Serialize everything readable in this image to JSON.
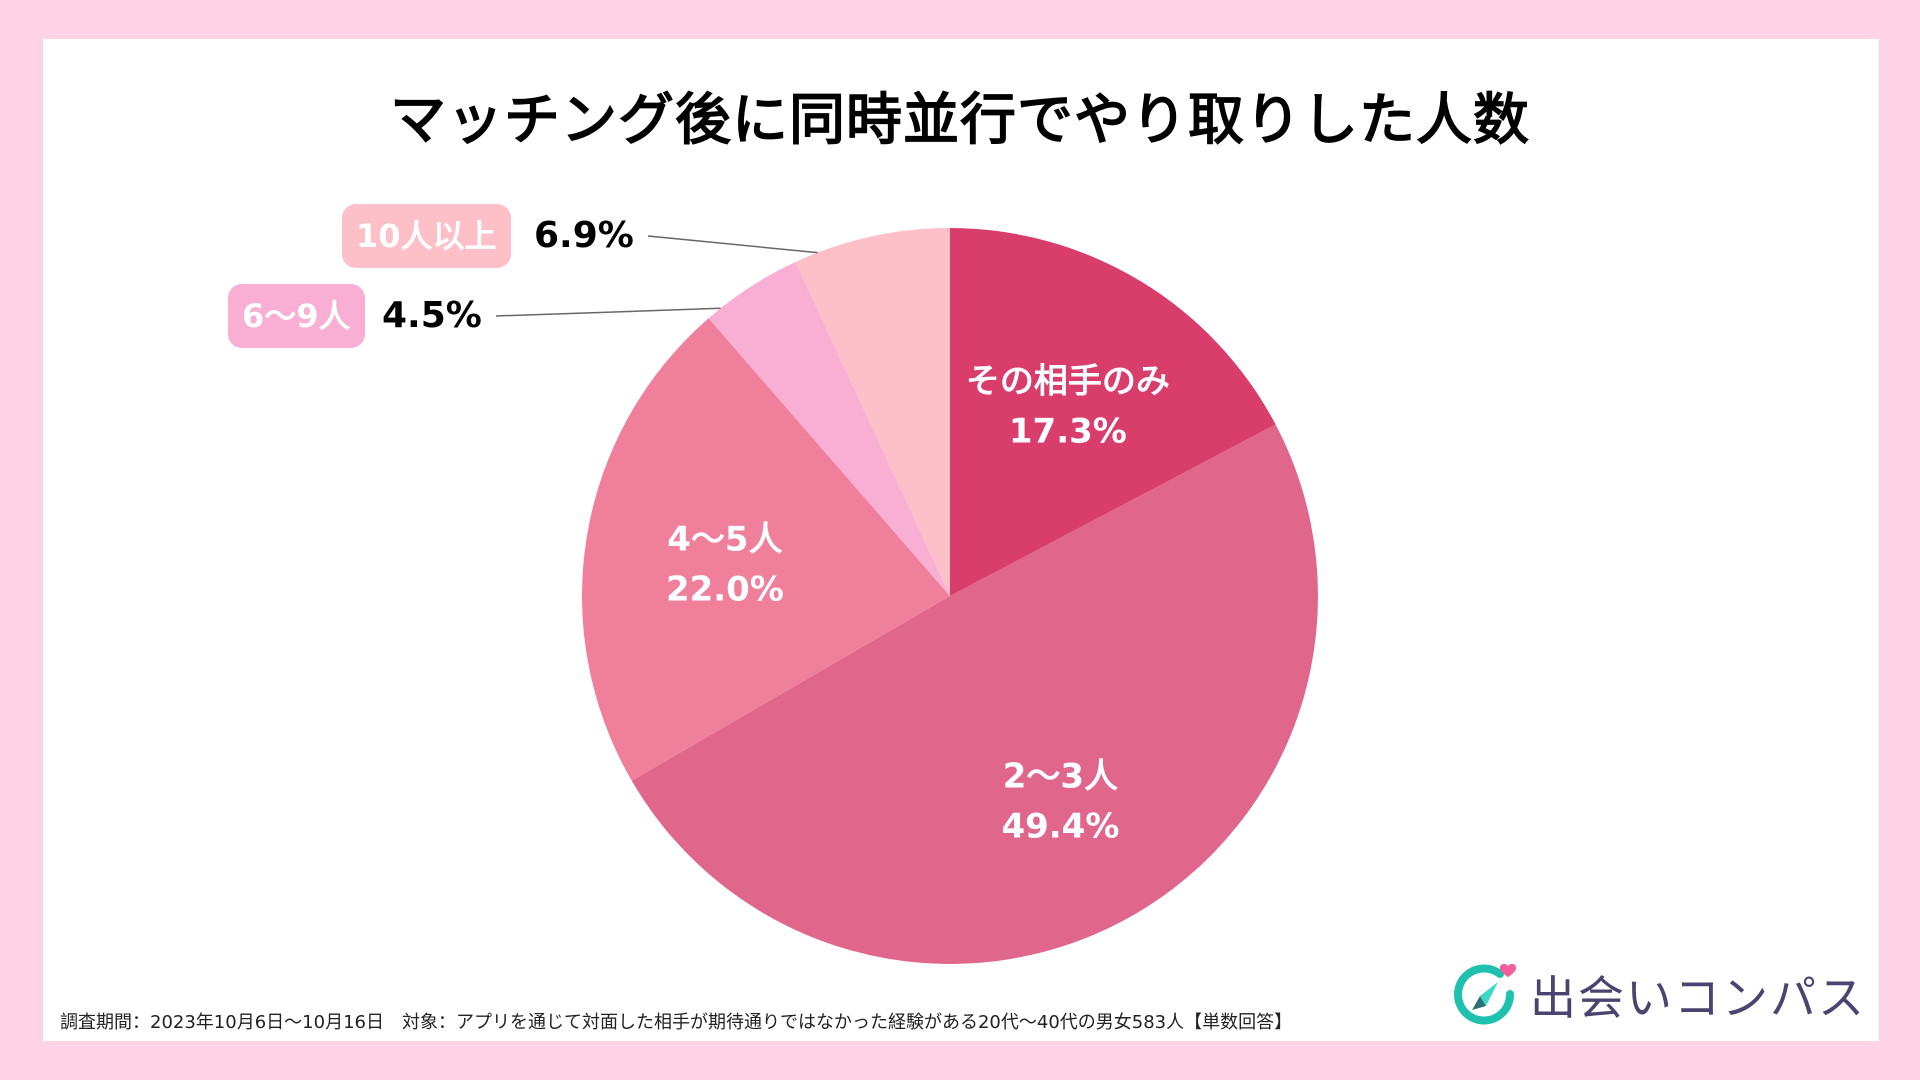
{
  "chart_data": {
    "type": "pie",
    "title": "マッチング後に同時並行でやり取りした人数",
    "start": "12 o'clock",
    "direction": "clockwise",
    "slices": [
      {
        "label": "その相手のみ",
        "value": 17.3,
        "display": "17.3%",
        "color": "#D83D6C",
        "label_position": "inside"
      },
      {
        "label": "2〜3人",
        "value": 49.4,
        "display": "49.4%",
        "color": "#E0668C",
        "label_position": "inside"
      },
      {
        "label": "4〜5人",
        "value": 22.0,
        "display": "22.0%",
        "color": "#F07F9C",
        "label_position": "inside"
      },
      {
        "label": "6〜9人",
        "value": 4.5,
        "display": "4.5%",
        "color": "#F9AED4",
        "label_position": "outside"
      },
      {
        "label": "10人以上",
        "value": 6.9,
        "display": "6.9%",
        "color": "#FEC0C8",
        "label_position": "outside"
      }
    ],
    "unit": "%",
    "legend": "none"
  },
  "footnote": "調査期間：2023年10月6日〜10月16日　対象：アプリを通じて対面した相手が期待通りではなかった経験がある20代〜40代の男女583人【単数回答】",
  "logo": {
    "text": "出会いコンパス",
    "icon": "compass-heart-icon",
    "colors": {
      "ring": "#1EC0AE",
      "heart": "#F0609E",
      "needle_light": "#3ED8C8",
      "needle_dark": "#2E6F78",
      "text": "#4A4470"
    }
  },
  "colors": {
    "background": "#FFD3E6",
    "card": "#FFFFFF",
    "leader_line": "#666666"
  }
}
